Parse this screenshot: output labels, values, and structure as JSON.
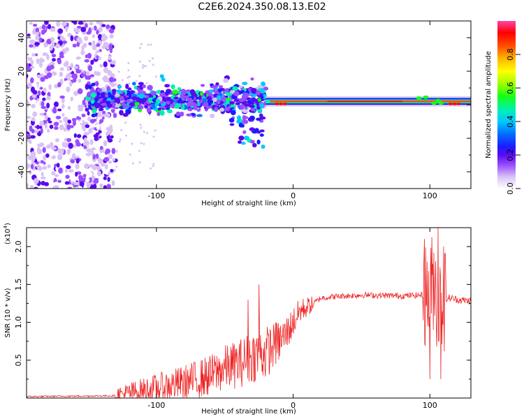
{
  "title": "C2E6.2024.350.08.13.E02",
  "chart_data": [
    {
      "type": "heatmap",
      "name": "spectrogram",
      "xlabel": "Height of straight line (km)",
      "ylabel": "Frequency (Hz)",
      "xlim": [
        -195,
        130
      ],
      "ylim": [
        -50,
        50
      ],
      "x_ticks": [
        -100,
        0,
        100
      ],
      "y_ticks": [
        -40,
        -20,
        0,
        20,
        40
      ],
      "colorbar": {
        "label": "Normalized spectral amplitude",
        "range": [
          0,
          1
        ],
        "ticks": [
          "0.0",
          "0.2",
          "0.4",
          "0.6",
          "0.8"
        ],
        "colors": [
          "#ffffff",
          "#d9c2f5",
          "#9a4dff",
          "#5a0aef",
          "#1b1bff",
          "#0073ff",
          "#00c8ff",
          "#00f0b0",
          "#16ff16",
          "#a5ff00",
          "#ffff00",
          "#ffb000",
          "#ff5000",
          "#ff0000",
          "#ff44aa"
        ]
      },
      "features": [
        {
          "region": "broadband noise",
          "x": [
            -195,
            -130
          ],
          "freq": [
            -50,
            50
          ],
          "amplitude": 0.25
        },
        {
          "region": "scattered band",
          "x": [
            -150,
            -20
          ],
          "freq": [
            -25,
            18
          ],
          "center_freq": 3,
          "amplitude": 0.35
        },
        {
          "region": "narrowband line",
          "x": [
            -20,
            130
          ],
          "freq": [
            0,
            4
          ],
          "center_freq": 2,
          "amplitude": 0.95
        }
      ]
    },
    {
      "type": "line",
      "name": "snr",
      "xlabel": "Height of straight line (km)",
      "ylabel": "SNR (10 * v/v)",
      "scale_label": "(x10",
      "scale_exp": "4",
      "scale_close": ")",
      "xlim": [
        -195,
        130
      ],
      "ylim": [
        0,
        2.25
      ],
      "x_ticks": [
        -100,
        0,
        100
      ],
      "y_ticks": [
        "0.5",
        "1.0",
        "1.5",
        "2.0"
      ],
      "series_color": "#ee2222",
      "profile_x": [
        -195,
        -130,
        -110,
        -80,
        -60,
        -50,
        -40,
        -30,
        -20,
        -10,
        -5,
        0,
        5,
        10,
        15,
        20,
        30,
        50,
        80,
        95,
        100,
        103,
        106,
        110,
        115,
        120,
        130
      ],
      "profile_y": [
        0.02,
        0.03,
        0.1,
        0.2,
        0.3,
        0.4,
        0.45,
        0.55,
        0.6,
        0.75,
        0.85,
        1.0,
        1.15,
        1.2,
        1.25,
        1.32,
        1.34,
        1.36,
        1.35,
        1.36,
        1.38,
        1.6,
        1.2,
        1.3,
        1.32,
        1.3,
        1.28
      ],
      "spikes": [
        {
          "x": -33,
          "y": 1.3
        },
        {
          "x": -25,
          "y": 1.5
        },
        {
          "x": -13,
          "y": 1.0
        },
        {
          "x": 96,
          "y": 2.1
        },
        {
          "x": 100,
          "y": 0.25
        },
        {
          "x": 104,
          "y": 1.55
        },
        {
          "x": 106,
          "y": 2.25
        },
        {
          "x": 108,
          "y": 0.25
        },
        {
          "x": 110,
          "y": 2.0
        }
      ]
    }
  ]
}
